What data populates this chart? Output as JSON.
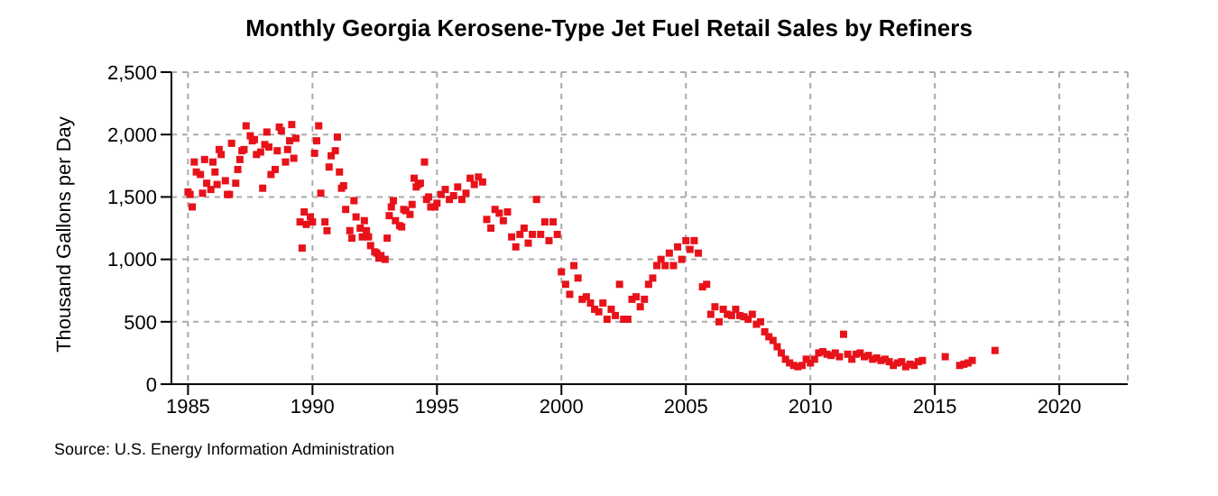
{
  "chart_data": {
    "type": "scatter",
    "title": "Monthly Georgia Kerosene-Type Jet Fuel Retail Sales by Refiners",
    "ylabel": "Thousand Gallons per Day",
    "annotations": [
      "Source: U.S. Energy Information Administration"
    ],
    "xlim": [
      "1984-05",
      "2022-10"
    ],
    "xticks": [
      "1985",
      "1990",
      "1995",
      "2000",
      "2005",
      "2010",
      "2015",
      "2020"
    ],
    "ylim": [
      0,
      2500
    ],
    "yticks": [
      0,
      {
        "value": 500,
        "label": "500"
      },
      {
        "value": 1000,
        "label": "1,000"
      },
      {
        "value": 1500,
        "label": "1,500"
      },
      {
        "value": 2000,
        "label": "2,000"
      },
      {
        "value": 2500,
        "label": "2,500"
      }
    ],
    "grid": true,
    "marker": "square",
    "series": [
      {
        "color": "#e8121a",
        "x": [
          "1985-01",
          "1985-02",
          "1985-03",
          "1985-04",
          "1985-05",
          "1985-07",
          "1985-08",
          "1985-09",
          "1985-10",
          "1985-12",
          "1986-01",
          "1986-02",
          "1986-03",
          "1986-04",
          "1986-05",
          "1986-07",
          "1986-08",
          "1986-09",
          "1986-10",
          "1986-12",
          "1987-01",
          "1987-02",
          "1987-03",
          "1987-04",
          "1987-05",
          "1987-07",
          "1987-08",
          "1987-09",
          "1987-10",
          "1987-12",
          "1988-01",
          "1988-02",
          "1988-03",
          "1988-04",
          "1988-05",
          "1988-07",
          "1988-08",
          "1988-09",
          "1988-10",
          "1988-12",
          "1989-01",
          "1989-02",
          "1989-03",
          "1989-04",
          "1989-05",
          "1989-07",
          "1989-08",
          "1989-09",
          "1989-10",
          "1989-12",
          "1990-01",
          "1990-02",
          "1990-03",
          "1990-04",
          "1990-05",
          "1990-07",
          "1990-08",
          "1990-09",
          "1990-10",
          "1990-12",
          "1991-01",
          "1991-02",
          "1991-03",
          "1991-04",
          "1991-05",
          "1991-07",
          "1991-08",
          "1991-09",
          "1991-10",
          "1991-12",
          "1992-01",
          "1992-02",
          "1992-03",
          "1992-04",
          "1992-05",
          "1992-07",
          "1992-08",
          "1992-09",
          "1992-10",
          "1992-12",
          "1993-01",
          "1993-02",
          "1993-03",
          "1993-04",
          "1993-05",
          "1993-07",
          "1993-08",
          "1993-09",
          "1993-10",
          "1993-12",
          "1994-01",
          "1994-02",
          "1994-03",
          "1994-04",
          "1994-05",
          "1994-07",
          "1994-08",
          "1994-09",
          "1994-10",
          "1994-12",
          "1995-01",
          "1995-03",
          "1995-05",
          "1995-07",
          "1995-09",
          "1995-11",
          "1996-01",
          "1996-03",
          "1996-05",
          "1996-07",
          "1996-09",
          "1996-11",
          "1997-01",
          "1997-03",
          "1997-05",
          "1997-07",
          "1997-09",
          "1997-11",
          "1998-01",
          "1998-03",
          "1998-05",
          "1998-07",
          "1998-09",
          "1998-11",
          "1999-01",
          "1999-03",
          "1999-05",
          "1999-07",
          "1999-09",
          "1999-11",
          "2000-01",
          "2000-03",
          "2000-05",
          "2000-07",
          "2000-09",
          "2000-11",
          "2001-01",
          "2001-03",
          "2001-05",
          "2001-07",
          "2001-09",
          "2001-11",
          "2002-01",
          "2002-03",
          "2002-05",
          "2002-07",
          "2002-09",
          "2002-11",
          "2003-01",
          "2003-03",
          "2003-05",
          "2003-07",
          "2003-09",
          "2003-11",
          "2004-01",
          "2004-03",
          "2004-05",
          "2004-07",
          "2004-09",
          "2004-11",
          "2005-01",
          "2005-03",
          "2005-05",
          "2005-07",
          "2005-09",
          "2005-11",
          "2006-01",
          "2006-03",
          "2006-05",
          "2006-07",
          "2006-09",
          "2006-11",
          "2007-01",
          "2007-03",
          "2007-05",
          "2007-07",
          "2007-09",
          "2007-11",
          "2008-01",
          "2008-03",
          "2008-05",
          "2008-07",
          "2008-09",
          "2008-11",
          "2009-01",
          "2009-03",
          "2009-05",
          "2009-07",
          "2009-09",
          "2009-11",
          "2010-01",
          "2010-03",
          "2010-05",
          "2010-07",
          "2010-09",
          "2010-11",
          "2011-01",
          "2011-03",
          "2011-05",
          "2011-07",
          "2011-09",
          "2011-11",
          "2012-01",
          "2012-03",
          "2012-05",
          "2012-07",
          "2012-09",
          "2012-11",
          "2013-01",
          "2013-03",
          "2013-05",
          "2013-07",
          "2013-09",
          "2013-11",
          "2014-01",
          "2014-03",
          "2014-05",
          "2014-07",
          "2015-06",
          "2016-01",
          "2016-03",
          "2016-05",
          "2016-07",
          "2017-06"
        ],
        "values": [
          1540,
          1520,
          1420,
          1780,
          1700,
          1680,
          1530,
          1800,
          1610,
          1560,
          1780,
          1700,
          1600,
          1880,
          1840,
          1630,
          1520,
          1520,
          1930,
          1610,
          1720,
          1800,
          1870,
          1880,
          2070,
          1990,
          1950,
          1960,
          1840,
          1860,
          1570,
          1920,
          2020,
          1900,
          1680,
          1720,
          1870,
          2060,
          2030,
          1780,
          1880,
          1950,
          2080,
          1810,
          1970,
          1300,
          1090,
          1380,
          1280,
          1340,
          1300,
          1850,
          1950,
          2070,
          1530,
          1300,
          1230,
          1740,
          1830,
          1870,
          1980,
          1700,
          1570,
          1590,
          1400,
          1230,
          1170,
          1470,
          1340,
          1250,
          1180,
          1310,
          1230,
          1180,
          1110,
          1060,
          1050,
          1010,
          1030,
          1000,
          1170,
          1350,
          1420,
          1470,
          1310,
          1270,
          1260,
          1400,
          1390,
          1360,
          1440,
          1650,
          1580,
          1600,
          1610,
          1780,
          1480,
          1500,
          1420,
          1420,
          1450,
          1520,
          1560,
          1480,
          1510,
          1580,
          1480,
          1530,
          1650,
          1600,
          1660,
          1620,
          1320,
          1250,
          1400,
          1370,
          1310,
          1380,
          1180,
          1100,
          1200,
          1250,
          1130,
          1200,
          1480,
          1200,
          1300,
          1150,
          1300,
          1200,
          900,
          800,
          720,
          950,
          850,
          680,
          700,
          650,
          600,
          580,
          650,
          520,
          600,
          550,
          800,
          520,
          520,
          680,
          700,
          620,
          680,
          800,
          850,
          950,
          1000,
          950,
          1050,
          950,
          1100,
          1000,
          1150,
          1080,
          1150,
          1050,
          780,
          800,
          560,
          620,
          500,
          600,
          560,
          550,
          600,
          550,
          540,
          520,
          560,
          480,
          500,
          420,
          380,
          350,
          300,
          250,
          200,
          170,
          150,
          140,
          150,
          200,
          170,
          200,
          250,
          260,
          240,
          230,
          250,
          220,
          400,
          240,
          200,
          240,
          250,
          220,
          230,
          200,
          210,
          190,
          200,
          180,
          150,
          170,
          180,
          140,
          160,
          150,
          180,
          190,
          220,
          150,
          160,
          170,
          190,
          270
        ]
      }
    ]
  }
}
